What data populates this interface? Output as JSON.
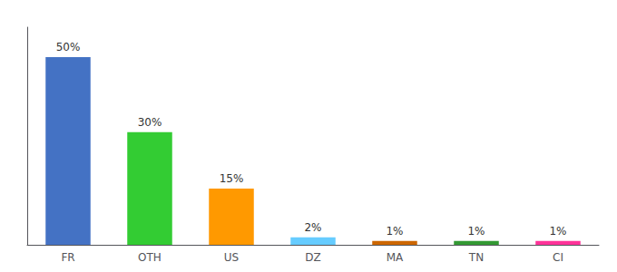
{
  "chart_data": {
    "type": "bar",
    "categories": [
      "FR",
      "OTH",
      "US",
      "DZ",
      "MA",
      "TN",
      "CI"
    ],
    "values": [
      50,
      30,
      15,
      2,
      1,
      1,
      1
    ],
    "value_labels": [
      "50%",
      "30%",
      "15%",
      "2%",
      "1%",
      "1%",
      "1%"
    ],
    "colors": [
      "#4472c4",
      "#33cc33",
      "#ff9900",
      "#66ccff",
      "#cc6600",
      "#339933",
      "#ff3399"
    ],
    "ylim": [
      0,
      58
    ],
    "grid": false,
    "data_labels": true,
    "tick_labels": "x"
  }
}
